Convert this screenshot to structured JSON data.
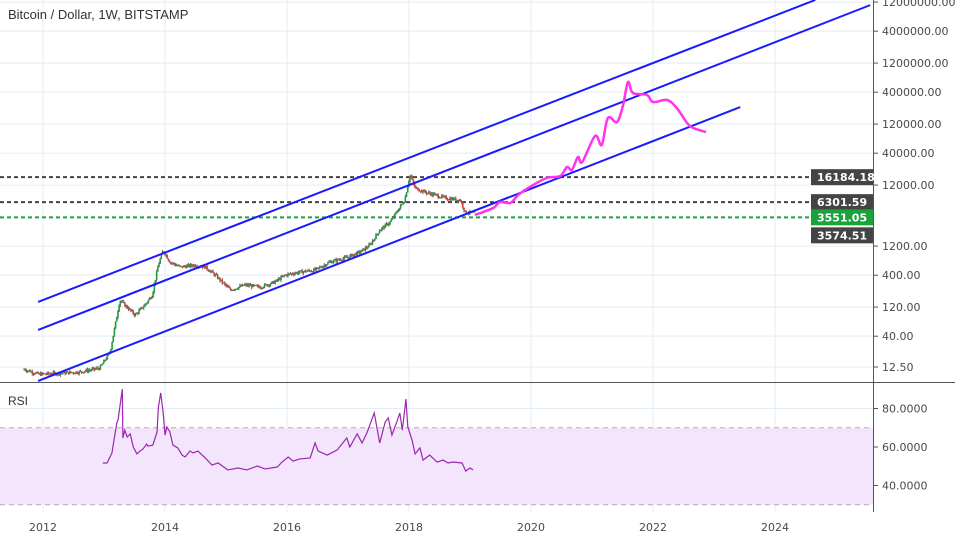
{
  "header": {
    "title": "Bitcoin / Dollar, 1W, BITSTAMP"
  },
  "rsi_pane": {
    "label": "RSI"
  },
  "colors": {
    "trendline": "#1a1aff",
    "projection": "#ff33ee",
    "rsi_line": "#9c27b0",
    "rsi_band": "#f3e5fc",
    "up": "#1f9d3a",
    "down": "#e53935",
    "level_dark": "#444444",
    "level_green": "#1aa33a",
    "grid": "#e3ecf5"
  },
  "chart_data": [
    {
      "type": "line",
      "pane": "price",
      "scale": "log",
      "grid": true,
      "x_ticks": [
        "2012",
        "2014",
        "2016",
        "2018",
        "2020",
        "2022",
        "2024"
      ],
      "x_tick_values": [
        2012,
        2014,
        2016,
        2018,
        2020,
        2022,
        2024
      ],
      "y_ticks": [
        {
          "value": 12000000,
          "label": "12000000.00"
        },
        {
          "value": 4000000,
          "label": "4000000.00"
        },
        {
          "value": 1200000,
          "label": "1200000.00"
        },
        {
          "value": 400000,
          "label": "400000.00"
        },
        {
          "value": 120000,
          "label": "120000.00"
        },
        {
          "value": 40000,
          "label": "40000.00"
        },
        {
          "value": 12000,
          "label": "12000.00"
        },
        {
          "value": 1200,
          "label": "1200.00"
        },
        {
          "value": 400,
          "label": "400.00"
        },
        {
          "value": 120,
          "label": "120.00"
        },
        {
          "value": 40,
          "label": "40.00"
        },
        {
          "value": 12.5,
          "label": "12.50"
        }
      ],
      "price_path": [
        [
          2011.69,
          11.5
        ],
        [
          2011.93,
          9.5
        ],
        [
          2012.61,
          10.4
        ],
        [
          2012.93,
          12.0
        ],
        [
          2013.1,
          22
        ],
        [
          2013.26,
          157
        ],
        [
          2013.34,
          130
        ],
        [
          2013.51,
          89
        ],
        [
          2013.67,
          130
        ],
        [
          2013.79,
          189
        ],
        [
          2013.89,
          587
        ],
        [
          2013.97,
          1035
        ],
        [
          2014.08,
          658
        ],
        [
          2014.25,
          545
        ],
        [
          2014.49,
          587
        ],
        [
          2014.66,
          545
        ],
        [
          2014.82,
          403
        ],
        [
          2015.07,
          229
        ],
        [
          2015.31,
          276
        ],
        [
          2015.56,
          256
        ],
        [
          2015.8,
          309
        ],
        [
          2015.97,
          403
        ],
        [
          2016.21,
          451
        ],
        [
          2016.46,
          486
        ],
        [
          2016.7,
          658
        ],
        [
          2016.95,
          765
        ],
        [
          2017.2,
          960
        ],
        [
          2017.36,
          1250
        ],
        [
          2017.52,
          2200
        ],
        [
          2017.69,
          2980
        ],
        [
          2017.82,
          4690
        ],
        [
          2017.93,
          6840
        ],
        [
          2017.98,
          12060
        ],
        [
          2018.02,
          17550
        ],
        [
          2018.1,
          10740
        ],
        [
          2018.26,
          9240
        ],
        [
          2018.43,
          8260
        ],
        [
          2018.59,
          7380
        ],
        [
          2018.84,
          6840
        ],
        [
          2018.92,
          4340
        ],
        [
          2019.08,
          4180
        ]
      ],
      "trendlines": [
        [
          [
            2011.92,
            146
          ],
          [
            2024.66,
            13000000
          ]
        ],
        [
          [
            2011.92,
            50.6
          ],
          [
            2025.56,
            10700000
          ]
        ],
        [
          [
            2011.92,
            7.4
          ],
          [
            2023.43,
            228000
          ]
        ]
      ],
      "projection": [
        [
          2019.08,
          3880
        ],
        [
          2019.38,
          5060
        ],
        [
          2019.49,
          6340
        ],
        [
          2019.66,
          6110
        ],
        [
          2019.79,
          8260
        ],
        [
          2019.98,
          11170
        ],
        [
          2020.26,
          15680
        ],
        [
          2020.48,
          16900
        ],
        [
          2020.59,
          23770
        ],
        [
          2020.67,
          21200
        ],
        [
          2020.77,
          34670
        ],
        [
          2020.84,
          28710
        ],
        [
          2021.05,
          76560
        ],
        [
          2021.16,
          54500
        ],
        [
          2021.26,
          151000
        ],
        [
          2021.41,
          129700
        ],
        [
          2021.51,
          246600
        ],
        [
          2021.59,
          587000
        ],
        [
          2021.67,
          388000
        ],
        [
          2021.9,
          360000
        ],
        [
          2022.0,
          276000
        ],
        [
          2022.23,
          298000
        ],
        [
          2022.39,
          220000
        ],
        [
          2022.56,
          125000
        ],
        [
          2022.66,
          103500
        ],
        [
          2022.87,
          88900
        ]
      ],
      "levels": [
        {
          "value": 16184.18,
          "label": "16184.18",
          "style": "dark"
        },
        {
          "value": 6301.59,
          "label": "6301.59",
          "style": "dark"
        },
        {
          "value": 3551.05,
          "label": "3551.05",
          "style": "green"
        }
      ],
      "last_price": {
        "value": 3574.51,
        "label": "3574.51"
      }
    },
    {
      "type": "line",
      "pane": "rsi",
      "name": "RSI",
      "band": [
        30,
        70
      ],
      "y_ticks": [
        {
          "value": 80,
          "label": "80.0000"
        },
        {
          "value": 60,
          "label": "60.0000"
        },
        {
          "value": 40,
          "label": "40.0000"
        }
      ],
      "points": [
        [
          2012.98,
          51.7
        ],
        [
          2013.05,
          51.7
        ],
        [
          2013.13,
          56.9
        ],
        [
          2013.21,
          72.5
        ],
        [
          2013.23,
          74.0
        ],
        [
          2013.3,
          90.1
        ],
        [
          2013.31,
          64.7
        ],
        [
          2013.34,
          68.8
        ],
        [
          2013.38,
          65.2
        ],
        [
          2013.43,
          66.8
        ],
        [
          2013.48,
          60.0
        ],
        [
          2013.54,
          56.4
        ],
        [
          2013.59,
          57.9
        ],
        [
          2013.64,
          59.0
        ],
        [
          2013.7,
          61.6
        ],
        [
          2013.72,
          60.5
        ],
        [
          2013.8,
          61.0
        ],
        [
          2013.87,
          67.8
        ],
        [
          2013.89,
          80.3
        ],
        [
          2013.93,
          88.1
        ],
        [
          2013.97,
          77.7
        ],
        [
          2014.0,
          66.2
        ],
        [
          2014.03,
          70.4
        ],
        [
          2014.08,
          67.8
        ],
        [
          2014.13,
          61.0
        ],
        [
          2014.21,
          59.5
        ],
        [
          2014.28,
          55.8
        ],
        [
          2014.33,
          54.8
        ],
        [
          2014.41,
          57.9
        ],
        [
          2014.46,
          56.9
        ],
        [
          2014.54,
          57.9
        ],
        [
          2014.66,
          54.3
        ],
        [
          2014.77,
          50.6
        ],
        [
          2014.87,
          51.7
        ],
        [
          2015.03,
          48.1
        ],
        [
          2015.2,
          49.1
        ],
        [
          2015.34,
          48.1
        ],
        [
          2015.51,
          50.1
        ],
        [
          2015.64,
          48.6
        ],
        [
          2015.84,
          49.6
        ],
        [
          2015.92,
          52.2
        ],
        [
          2016.02,
          54.8
        ],
        [
          2016.1,
          52.7
        ],
        [
          2016.21,
          53.8
        ],
        [
          2016.38,
          54.3
        ],
        [
          2016.46,
          62.1
        ],
        [
          2016.51,
          57.9
        ],
        [
          2016.66,
          55.8
        ],
        [
          2016.82,
          58.4
        ],
        [
          2016.98,
          64.7
        ],
        [
          2017.03,
          60.0
        ],
        [
          2017.15,
          66.8
        ],
        [
          2017.23,
          62.1
        ],
        [
          2017.31,
          67.3
        ],
        [
          2017.43,
          77.7
        ],
        [
          2017.52,
          62.1
        ],
        [
          2017.61,
          73.0
        ],
        [
          2017.66,
          75.1
        ],
        [
          2017.72,
          66.2
        ],
        [
          2017.8,
          73.0
        ],
        [
          2017.85,
          77.7
        ],
        [
          2017.89,
          68.8
        ],
        [
          2017.95,
          84.9
        ],
        [
          2017.98,
          70.4
        ],
        [
          2018.05,
          63.6
        ],
        [
          2018.1,
          56.4
        ],
        [
          2018.18,
          59.5
        ],
        [
          2018.23,
          53.2
        ],
        [
          2018.34,
          55.8
        ],
        [
          2018.46,
          52.2
        ],
        [
          2018.56,
          53.2
        ],
        [
          2018.64,
          51.7
        ],
        [
          2018.72,
          52.2
        ],
        [
          2018.87,
          51.7
        ],
        [
          2018.93,
          47.5
        ],
        [
          2019.0,
          49.1
        ],
        [
          2019.05,
          48.1
        ]
      ]
    }
  ]
}
